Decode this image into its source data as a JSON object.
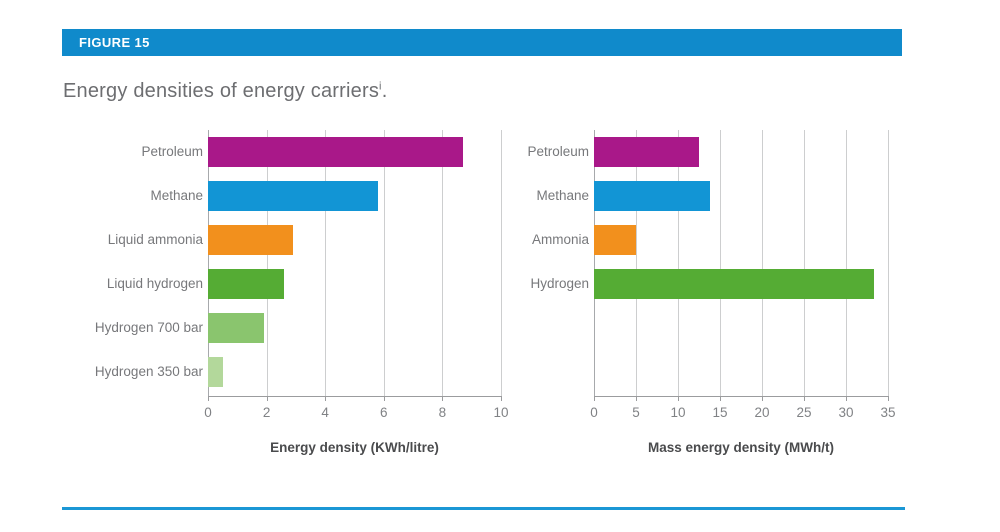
{
  "figure": {
    "tag_label": "FIGURE 15",
    "title_text": "Energy densities of energy carriers",
    "footnote_marker": "i",
    "title_suffix": "."
  },
  "colors": {
    "header_bar": "#108ACB",
    "bottom_rule": "#1B97D5",
    "petroleum_magenta": "#A91889",
    "methane_blue": "#1295D5",
    "ammonia_orange": "#F2901D",
    "hydrogen_green_dark": "#55AC34",
    "hydrogen_green_mid": "#8AC56E",
    "hydrogen_green_light": "#B3D89B"
  },
  "chart_data": [
    {
      "type": "bar",
      "orientation": "horizontal",
      "categories": [
        "Petroleum",
        "Methane",
        "Liquid ammonia",
        "Liquid hydrogen",
        "Hydrogen 700 bar",
        "Hydrogen 350 bar"
      ],
      "values": [
        8.7,
        5.8,
        2.9,
        2.6,
        1.9,
        0.5
      ],
      "bar_colors": [
        "#A91889",
        "#1295D5",
        "#F2901D",
        "#55AC34",
        "#8AC56E",
        "#B3D89B"
      ],
      "xlabel": "Energy density (KWh/litre)",
      "xlim": [
        0,
        10
      ],
      "xticks": [
        0,
        2,
        4,
        6,
        8,
        10
      ],
      "grid": true,
      "legend": false,
      "title": ""
    },
    {
      "type": "bar",
      "orientation": "horizontal",
      "categories": [
        "Petroleum",
        "Methane",
        "Ammonia",
        "Hydrogen"
      ],
      "values": [
        12.5,
        13.8,
        5.0,
        33.3
      ],
      "bar_colors": [
        "#A91889",
        "#1295D5",
        "#F2901D",
        "#55AC34"
      ],
      "xlabel": "Mass energy density (MWh/t)",
      "xlim": [
        0,
        35
      ],
      "xticks": [
        0,
        5,
        10,
        15,
        20,
        25,
        30,
        35
      ],
      "grid": true,
      "legend": false,
      "title": ""
    }
  ]
}
